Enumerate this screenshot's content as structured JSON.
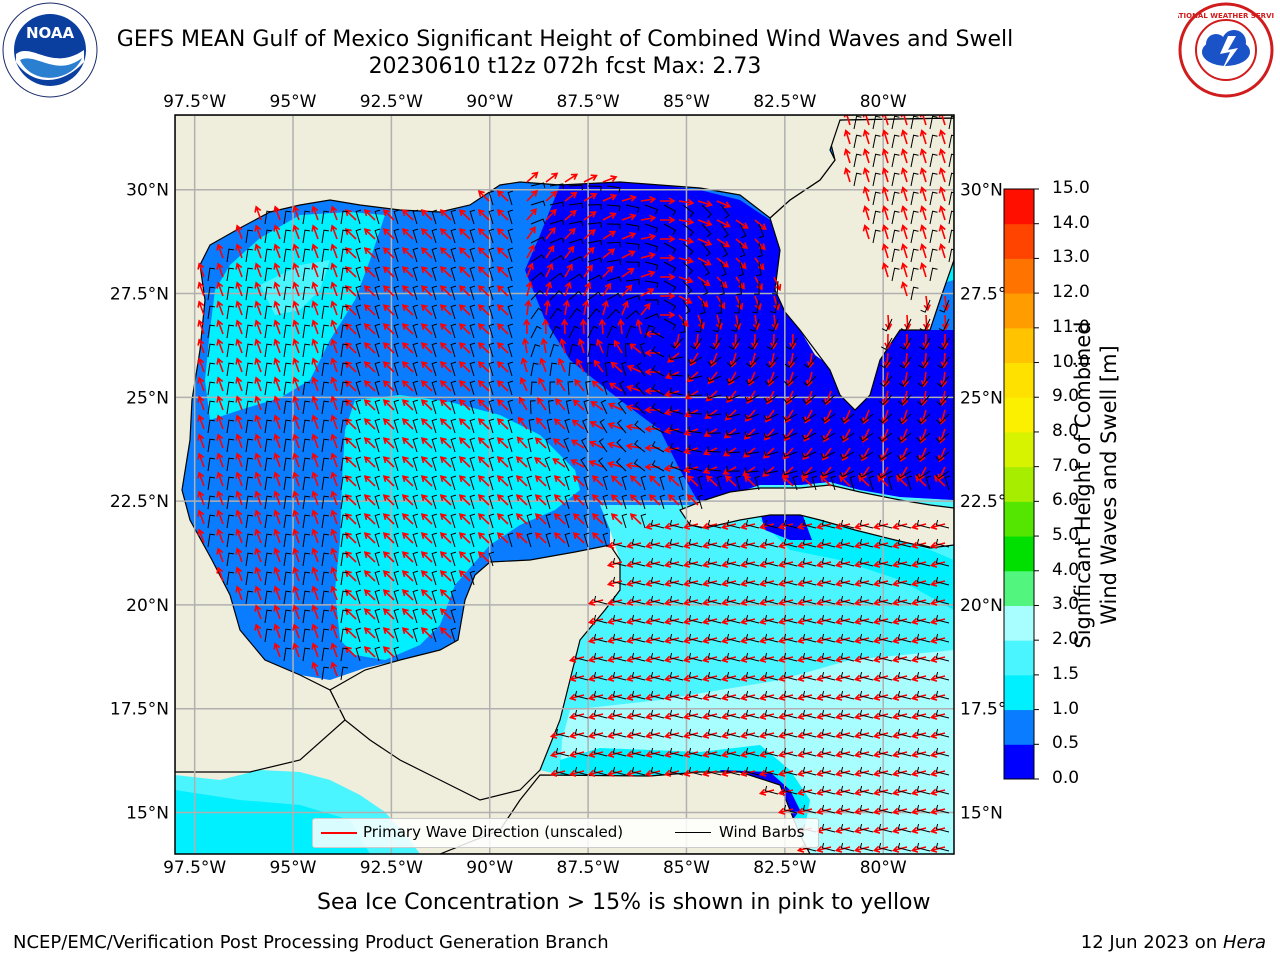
{
  "header": {
    "title_line1": "GEFS MEAN Gulf of Mexico Significant Height of Combined Wind Waves and Swell",
    "title_line2": "20230610 t12z 072h fcst   Max: 2.73"
  },
  "logos": {
    "left": {
      "name": "NOAA",
      "ring_text": "NATIONAL OCEANIC AND ATMOSPHERIC ADMINISTRATION · U.S. DEPARTMENT OF COMMERCE"
    },
    "right": {
      "name": "NATIONAL WEATHER SERVICE"
    }
  },
  "map": {
    "lon_labels": [
      "97.5°W",
      "95°W",
      "92.5°W",
      "90°W",
      "87.5°W",
      "85°W",
      "82.5°W",
      "80°W"
    ],
    "lon_values": [
      -97.5,
      -95,
      -92.5,
      -90,
      -87.5,
      -85,
      -82.5,
      -80
    ],
    "lat_labels": [
      "30°N",
      "27.5°N",
      "25°N",
      "22.5°N",
      "20°N",
      "17.5°N",
      "15°N"
    ],
    "lat_values": [
      30,
      27.5,
      25,
      22.5,
      20,
      17.5,
      15
    ],
    "extent": {
      "lon_min": -98,
      "lon_max": -78.2,
      "lat_min": 14,
      "lat_max": 31.8
    },
    "max_value": 2.73,
    "colors": {
      "land": "#efeddb",
      "grid": "#b0b0b0",
      "arrow": "#ff0000",
      "barb": "#000000"
    }
  },
  "legend": {
    "items": [
      {
        "label": "Primary Wave Direction (unscaled)",
        "color": "#ff0000"
      },
      {
        "label": "Wind Barbs",
        "color": "#000000"
      }
    ]
  },
  "colorbar": {
    "title_line1": "Significant Height of Combined",
    "title_line2": "Wind Waves and Swell [m]",
    "tick_labels": [
      "0.0",
      "0.5",
      "1.0",
      "1.5",
      "2.0",
      "3.0",
      "4.0",
      "5.0",
      "6.0",
      "7.0",
      "8.0",
      "9.0",
      "10.0",
      "11.0",
      "12.0",
      "13.0",
      "14.0",
      "15.0"
    ],
    "colors": [
      "#0000ff",
      "#0a7cff",
      "#00f0ff",
      "#4bf5ff",
      "#a8fdff",
      "#52f57e",
      "#00e000",
      "#54e600",
      "#a6ed00",
      "#d7f300",
      "#fbf000",
      "#ffe100",
      "#ffc300",
      "#ff9d00",
      "#ff7400",
      "#ff4400",
      "#ff0f00"
    ]
  },
  "footer": {
    "note": "Sea Ice Concentration > 15% is shown in pink to yellow",
    "left": "NCEP/EMC/Verification Post Processing Product Generation Branch",
    "right_date": "12 Jun 2023 on ",
    "right_host": "Hera"
  }
}
